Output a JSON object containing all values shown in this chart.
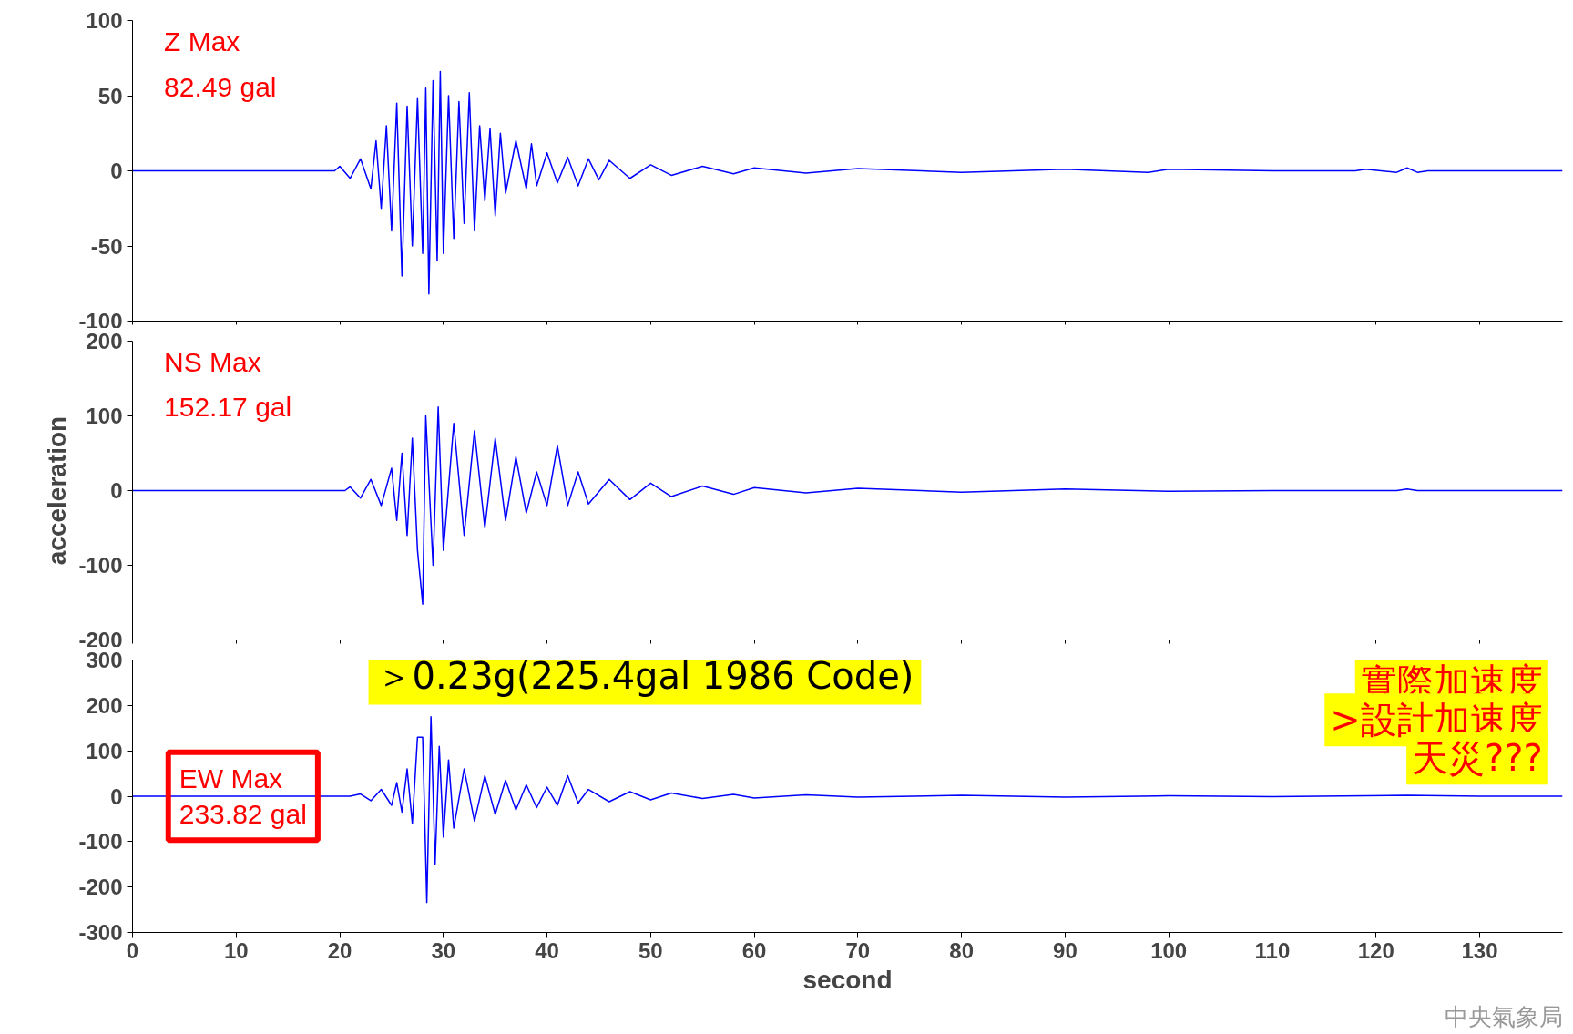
{
  "chart_data": [
    {
      "type": "line",
      "xlim": [
        0,
        138
      ],
      "ylim": [
        -100,
        100
      ],
      "yticks": [
        -100,
        -50,
        0,
        50,
        100
      ],
      "xticks": [
        0,
        10,
        20,
        30,
        40,
        50,
        60,
        70,
        80,
        90,
        100,
        110,
        120,
        130
      ],
      "tick_labels": "y",
      "grid": false,
      "x": [
        0,
        19.5,
        20,
        21,
        22,
        23,
        23.5,
        24,
        24.5,
        25,
        25.5,
        26,
        26.5,
        27,
        27.5,
        28,
        28.3,
        28.6,
        29,
        29.4,
        29.7,
        30,
        30.5,
        31,
        31.5,
        32,
        32.5,
        33,
        33.5,
        34,
        34.5,
        35,
        35.5,
        36,
        37,
        38,
        38.5,
        39,
        40,
        41,
        42,
        43,
        44,
        45,
        46,
        48,
        50,
        52,
        55,
        58,
        60,
        65,
        70,
        80,
        90,
        98,
        100,
        110,
        118,
        119,
        122,
        123,
        124,
        125,
        130,
        138
      ],
      "series": [
        {
          "color": "#0000ff",
          "values": [
            0,
            0,
            3,
            -5,
            8,
            -12,
            20,
            -25,
            30,
            -40,
            45,
            -70,
            43,
            -50,
            48,
            -55,
            55,
            -82,
            60,
            -60,
            66,
            -55,
            50,
            -45,
            46,
            -35,
            52,
            -40,
            30,
            -20,
            28,
            -30,
            25,
            -15,
            20,
            -12,
            18,
            -10,
            12,
            -8,
            9,
            -10,
            8,
            -6,
            7,
            -5,
            4,
            -3,
            3,
            -2,
            2,
            -1.5,
            1.5,
            -1,
            1,
            -1,
            1,
            0,
            0,
            1,
            -1,
            2,
            -1,
            0,
            0,
            0
          ]
        }
      ],
      "annotations": [
        "Z Max\n82.49 gal"
      ]
    },
    {
      "type": "line",
      "xlim": [
        0,
        138
      ],
      "ylim": [
        -200,
        200
      ],
      "yticks": [
        -200,
        -100,
        0,
        100,
        200
      ],
      "xticks": [
        0,
        10,
        20,
        30,
        40,
        50,
        60,
        70,
        80,
        90,
        100,
        110,
        120,
        130
      ],
      "tick_labels": "y",
      "grid": false,
      "ylabel": "acceleration",
      "x": [
        0,
        20.5,
        21,
        22,
        23,
        24,
        25,
        25.5,
        26,
        26.5,
        27,
        27.5,
        28,
        28.3,
        29,
        29.5,
        30,
        31,
        32,
        33,
        34,
        35,
        36,
        37,
        38,
        39,
        40,
        41,
        42,
        43,
        44,
        46,
        48,
        50,
        52,
        55,
        58,
        60,
        65,
        70,
        80,
        90,
        100,
        110,
        122,
        123,
        124,
        130,
        138
      ],
      "series": [
        {
          "color": "#0000ff",
          "values": [
            0,
            0,
            5,
            -10,
            15,
            -20,
            30,
            -40,
            50,
            -60,
            70,
            -80,
            -152,
            100,
            -100,
            112,
            -80,
            90,
            -60,
            80,
            -50,
            70,
            -40,
            45,
            -30,
            25,
            -20,
            60,
            -20,
            25,
            -18,
            15,
            -12,
            10,
            -8,
            6,
            -5,
            4,
            -3,
            3,
            -2,
            2,
            -1,
            0,
            0,
            2,
            0,
            0,
            0
          ]
        }
      ],
      "annotations": [
        "NS Max\n152.17 gal"
      ]
    },
    {
      "type": "line",
      "xlim": [
        0,
        138
      ],
      "ylim": [
        -300,
        300
      ],
      "yticks": [
        -300,
        -200,
        -100,
        0,
        100,
        200,
        300
      ],
      "xticks": [
        0,
        10,
        20,
        30,
        40,
        50,
        60,
        70,
        80,
        90,
        100,
        110,
        120,
        130
      ],
      "grid": false,
      "xlabel": "second",
      "x": [
        0,
        21,
        22,
        23,
        24,
        25,
        25.5,
        26,
        26.5,
        27,
        27.5,
        28,
        28.4,
        28.8,
        29.2,
        29.6,
        30,
        30.5,
        31,
        32,
        33,
        34,
        35,
        36,
        37,
        38,
        39,
        40,
        41,
        42,
        43,
        44,
        46,
        48,
        50,
        52,
        55,
        58,
        60,
        65,
        70,
        80,
        90,
        100,
        110,
        123,
        130,
        138
      ],
      "series": [
        {
          "color": "#0000ff",
          "values": [
            0,
            0,
            5,
            -10,
            15,
            -20,
            30,
            -35,
            60,
            -60,
            130,
            130,
            -234,
            175,
            -150,
            110,
            -90,
            80,
            -70,
            60,
            -55,
            45,
            -40,
            35,
            -30,
            25,
            -25,
            20,
            -20,
            45,
            -15,
            15,
            -12,
            10,
            -8,
            7,
            -5,
            4,
            -4,
            3,
            -2,
            2,
            -2,
            1,
            -1,
            2,
            0,
            0
          ]
        }
      ],
      "annotations": [
        "EW Max\n233.82 gal",
        "＞0.23g(225.4gal 1986 Code)",
        "實際加速度",
        ">設計加速度",
        "天災???",
        "中央氣象局"
      ]
    }
  ]
}
